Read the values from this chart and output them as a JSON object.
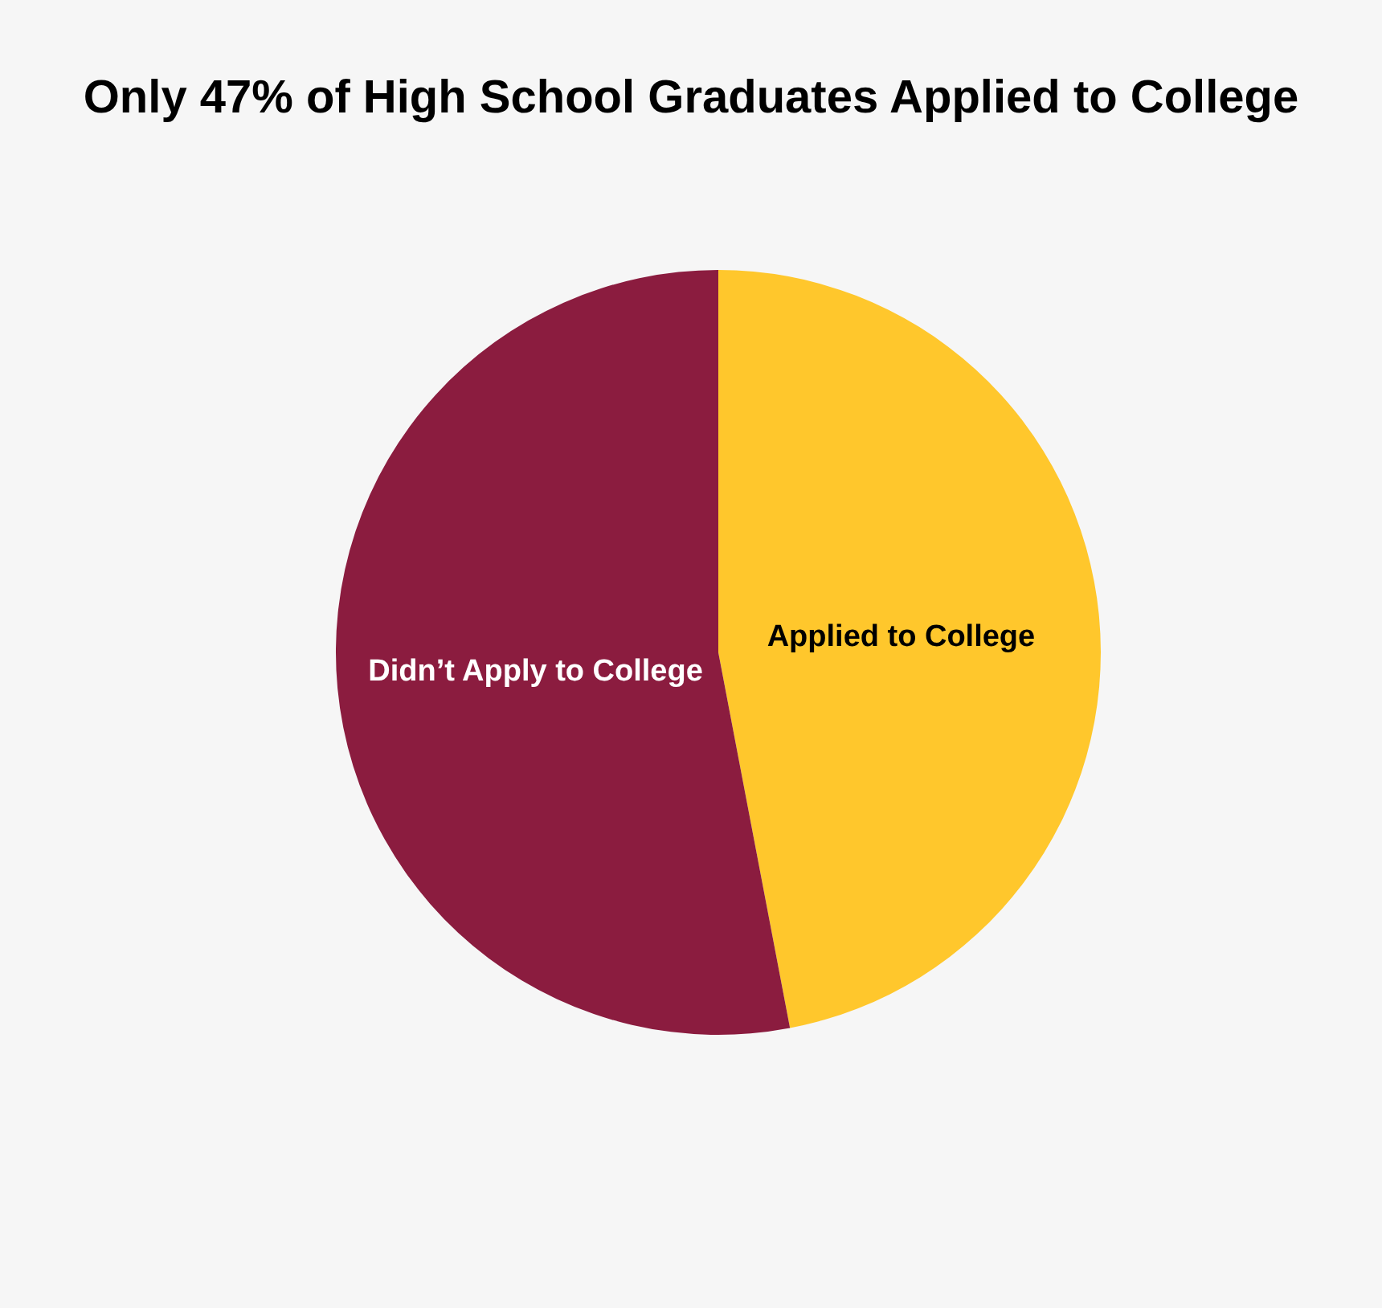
{
  "chart_data": {
    "type": "pie",
    "title": "Only 47% of High School Graduates Applied to College",
    "categories": [
      "Applied to College",
      "Didn’t Apply to College"
    ],
    "values": [
      47,
      53
    ],
    "colors": [
      "#ffc72c",
      "#8b1c3f"
    ]
  }
}
